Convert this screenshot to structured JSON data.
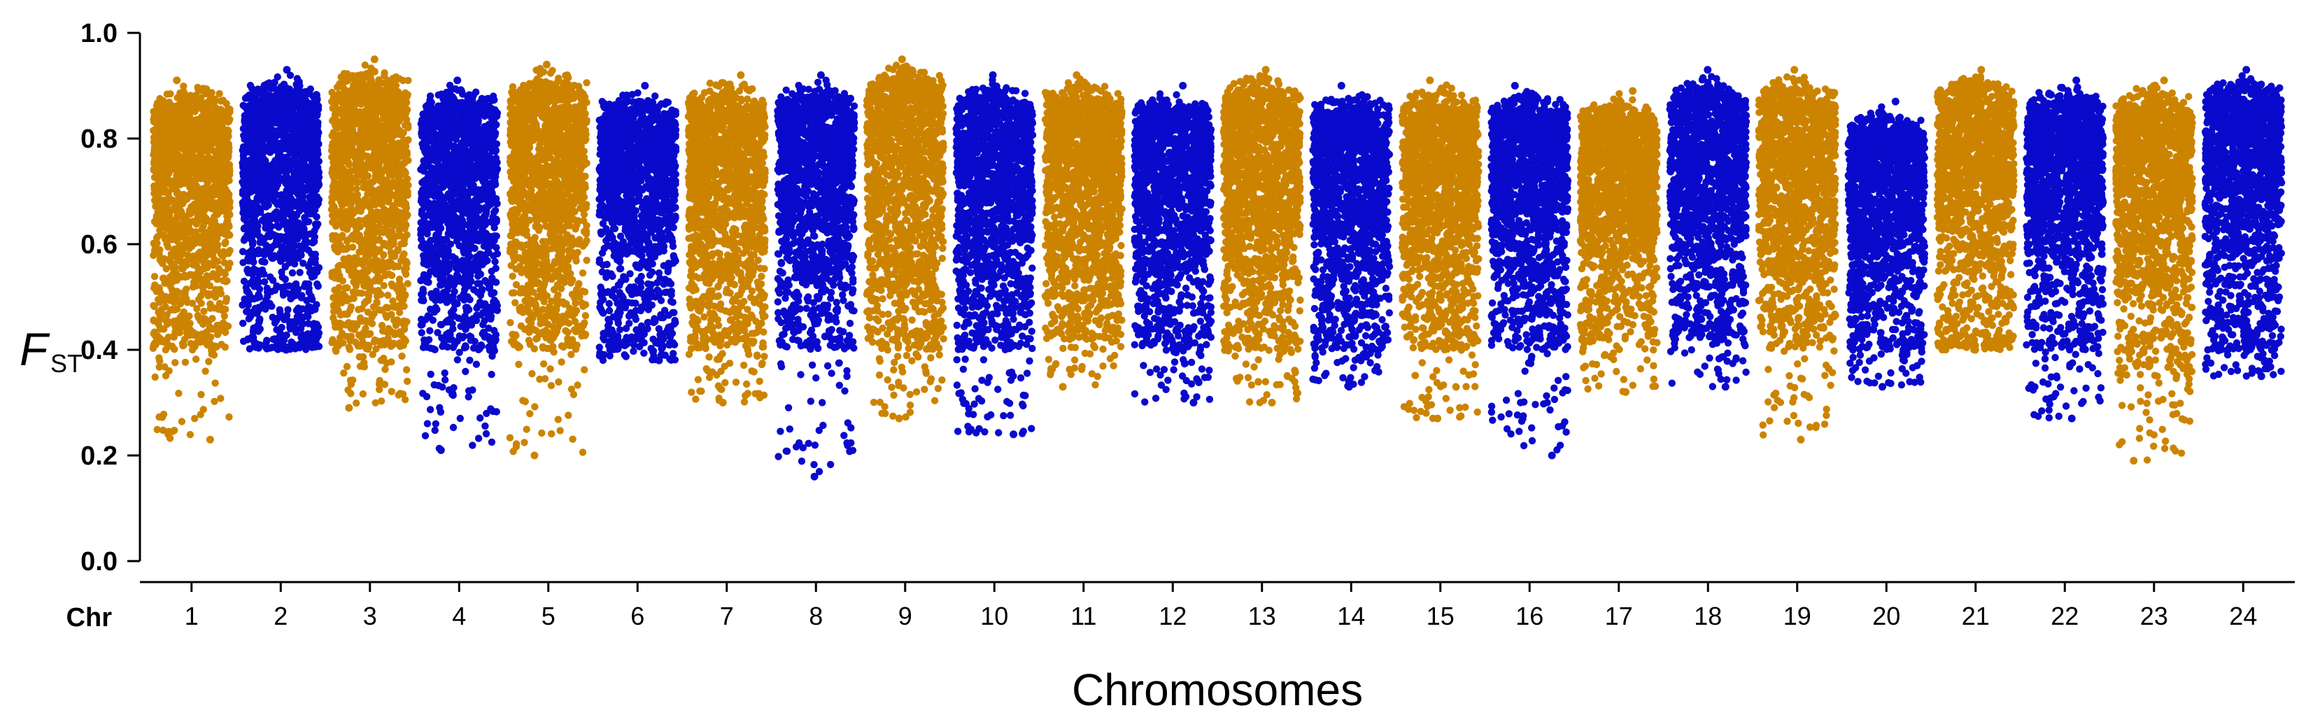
{
  "chart_data": {
    "type": "scatter",
    "title": "",
    "xlabel": "Chromosomes",
    "ylabel_main": "F",
    "ylabel_sub": "ST",
    "chr_prefix": "Chr",
    "ylim": [
      0.0,
      1.0
    ],
    "yticks": [
      {
        "value": 0.0,
        "label": "0.0"
      },
      {
        "value": 0.2,
        "label": "0.2"
      },
      {
        "value": 0.4,
        "label": "0.4"
      },
      {
        "value": 0.6,
        "label": "0.6"
      },
      {
        "value": 0.8,
        "label": "0.8"
      },
      {
        "value": 1.0,
        "label": "1.0"
      }
    ],
    "colors": {
      "odd": "#CC8400",
      "even": "#0A0ACC"
    },
    "series": [
      {
        "name": "1",
        "top": 0.91,
        "core_low": 0.52,
        "floor": 0.4,
        "min": 0.23,
        "color": "odd"
      },
      {
        "name": "2",
        "top": 0.93,
        "core_low": 0.55,
        "floor": 0.4,
        "min": 0.4,
        "color": "even"
      },
      {
        "name": "3",
        "top": 0.95,
        "core_low": 0.52,
        "floor": 0.4,
        "min": 0.29,
        "color": "odd"
      },
      {
        "name": "4",
        "top": 0.91,
        "core_low": 0.52,
        "floor": 0.4,
        "min": 0.21,
        "color": "even"
      },
      {
        "name": "5",
        "top": 0.94,
        "core_low": 0.52,
        "floor": 0.4,
        "min": 0.2,
        "color": "odd"
      },
      {
        "name": "6",
        "top": 0.9,
        "core_low": 0.55,
        "floor": 0.4,
        "min": 0.38,
        "color": "even"
      },
      {
        "name": "7",
        "top": 0.92,
        "core_low": 0.52,
        "floor": 0.4,
        "min": 0.3,
        "color": "odd"
      },
      {
        "name": "8",
        "top": 0.92,
        "core_low": 0.52,
        "floor": 0.4,
        "min": 0.16,
        "color": "even"
      },
      {
        "name": "9",
        "top": 0.95,
        "core_low": 0.52,
        "floor": 0.4,
        "min": 0.27,
        "color": "odd"
      },
      {
        "name": "10",
        "top": 0.92,
        "core_low": 0.52,
        "floor": 0.4,
        "min": 0.24,
        "color": "even"
      },
      {
        "name": "11",
        "top": 0.92,
        "core_low": 0.52,
        "floor": 0.42,
        "min": 0.33,
        "color": "odd"
      },
      {
        "name": "12",
        "top": 0.9,
        "core_low": 0.52,
        "floor": 0.4,
        "min": 0.3,
        "color": "even"
      },
      {
        "name": "13",
        "top": 0.93,
        "core_low": 0.52,
        "floor": 0.4,
        "min": 0.3,
        "color": "odd"
      },
      {
        "name": "14",
        "top": 0.9,
        "core_low": 0.52,
        "floor": 0.4,
        "min": 0.33,
        "color": "even"
      },
      {
        "name": "15",
        "top": 0.91,
        "core_low": 0.52,
        "floor": 0.4,
        "min": 0.27,
        "color": "odd"
      },
      {
        "name": "16",
        "top": 0.9,
        "core_low": 0.52,
        "floor": 0.4,
        "min": 0.2,
        "color": "even"
      },
      {
        "name": "17",
        "top": 0.89,
        "core_low": 0.55,
        "floor": 0.42,
        "min": 0.32,
        "color": "odd"
      },
      {
        "name": "18",
        "top": 0.93,
        "core_low": 0.55,
        "floor": 0.42,
        "min": 0.33,
        "color": "even"
      },
      {
        "name": "19",
        "top": 0.93,
        "core_low": 0.52,
        "floor": 0.4,
        "min": 0.23,
        "color": "odd"
      },
      {
        "name": "20",
        "top": 0.87,
        "core_low": 0.52,
        "floor": 0.4,
        "min": 0.33,
        "color": "even"
      },
      {
        "name": "21",
        "top": 0.93,
        "core_low": 0.55,
        "floor": 0.4,
        "min": 0.4,
        "color": "odd"
      },
      {
        "name": "22",
        "top": 0.91,
        "core_low": 0.55,
        "floor": 0.4,
        "min": 0.27,
        "color": "even"
      },
      {
        "name": "23",
        "top": 0.91,
        "core_low": 0.5,
        "floor": 0.35,
        "min": 0.19,
        "color": "odd"
      },
      {
        "name": "24",
        "top": 0.93,
        "core_low": 0.55,
        "floor": 0.4,
        "min": 0.35,
        "color": "even"
      }
    ]
  }
}
